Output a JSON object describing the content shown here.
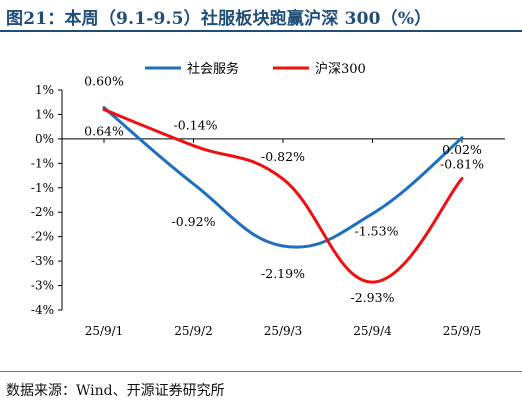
{
  "header": {
    "title": "图21：本周（9.1-9.5）社服板块跑赢沪深 300（%）"
  },
  "footer": {
    "source": "数据来源：Wind、开源证券研究所"
  },
  "chart_data": {
    "type": "line",
    "x": [
      "25/9/1",
      "25/9/2",
      "25/9/3",
      "25/9/4",
      "25/9/5"
    ],
    "y_ticks": [
      "1%",
      "1%",
      "0%",
      "-1%",
      "-1%",
      "-2%",
      "-2%",
      "-3%",
      "-3%",
      "-4%"
    ],
    "ylim": [
      -3.5,
      1.0
    ],
    "grid": false,
    "legend": "top",
    "series": [
      {
        "name": "社会服务",
        "color": "#1f6fbf",
        "values": [
          0.64,
          -0.92,
          -2.19,
          -1.53,
          0.02
        ],
        "labels": [
          "0.64%",
          "-0.92%",
          "-2.19%",
          "-1.53%",
          "0.02%"
        ]
      },
      {
        "name": "沪深300",
        "color": "#ee1111",
        "values": [
          0.6,
          -0.14,
          -0.82,
          -2.93,
          -0.81
        ],
        "labels": [
          "0.60%",
          "-0.14%",
          "-0.82%",
          "-2.93%",
          "-0.81%"
        ]
      }
    ]
  }
}
